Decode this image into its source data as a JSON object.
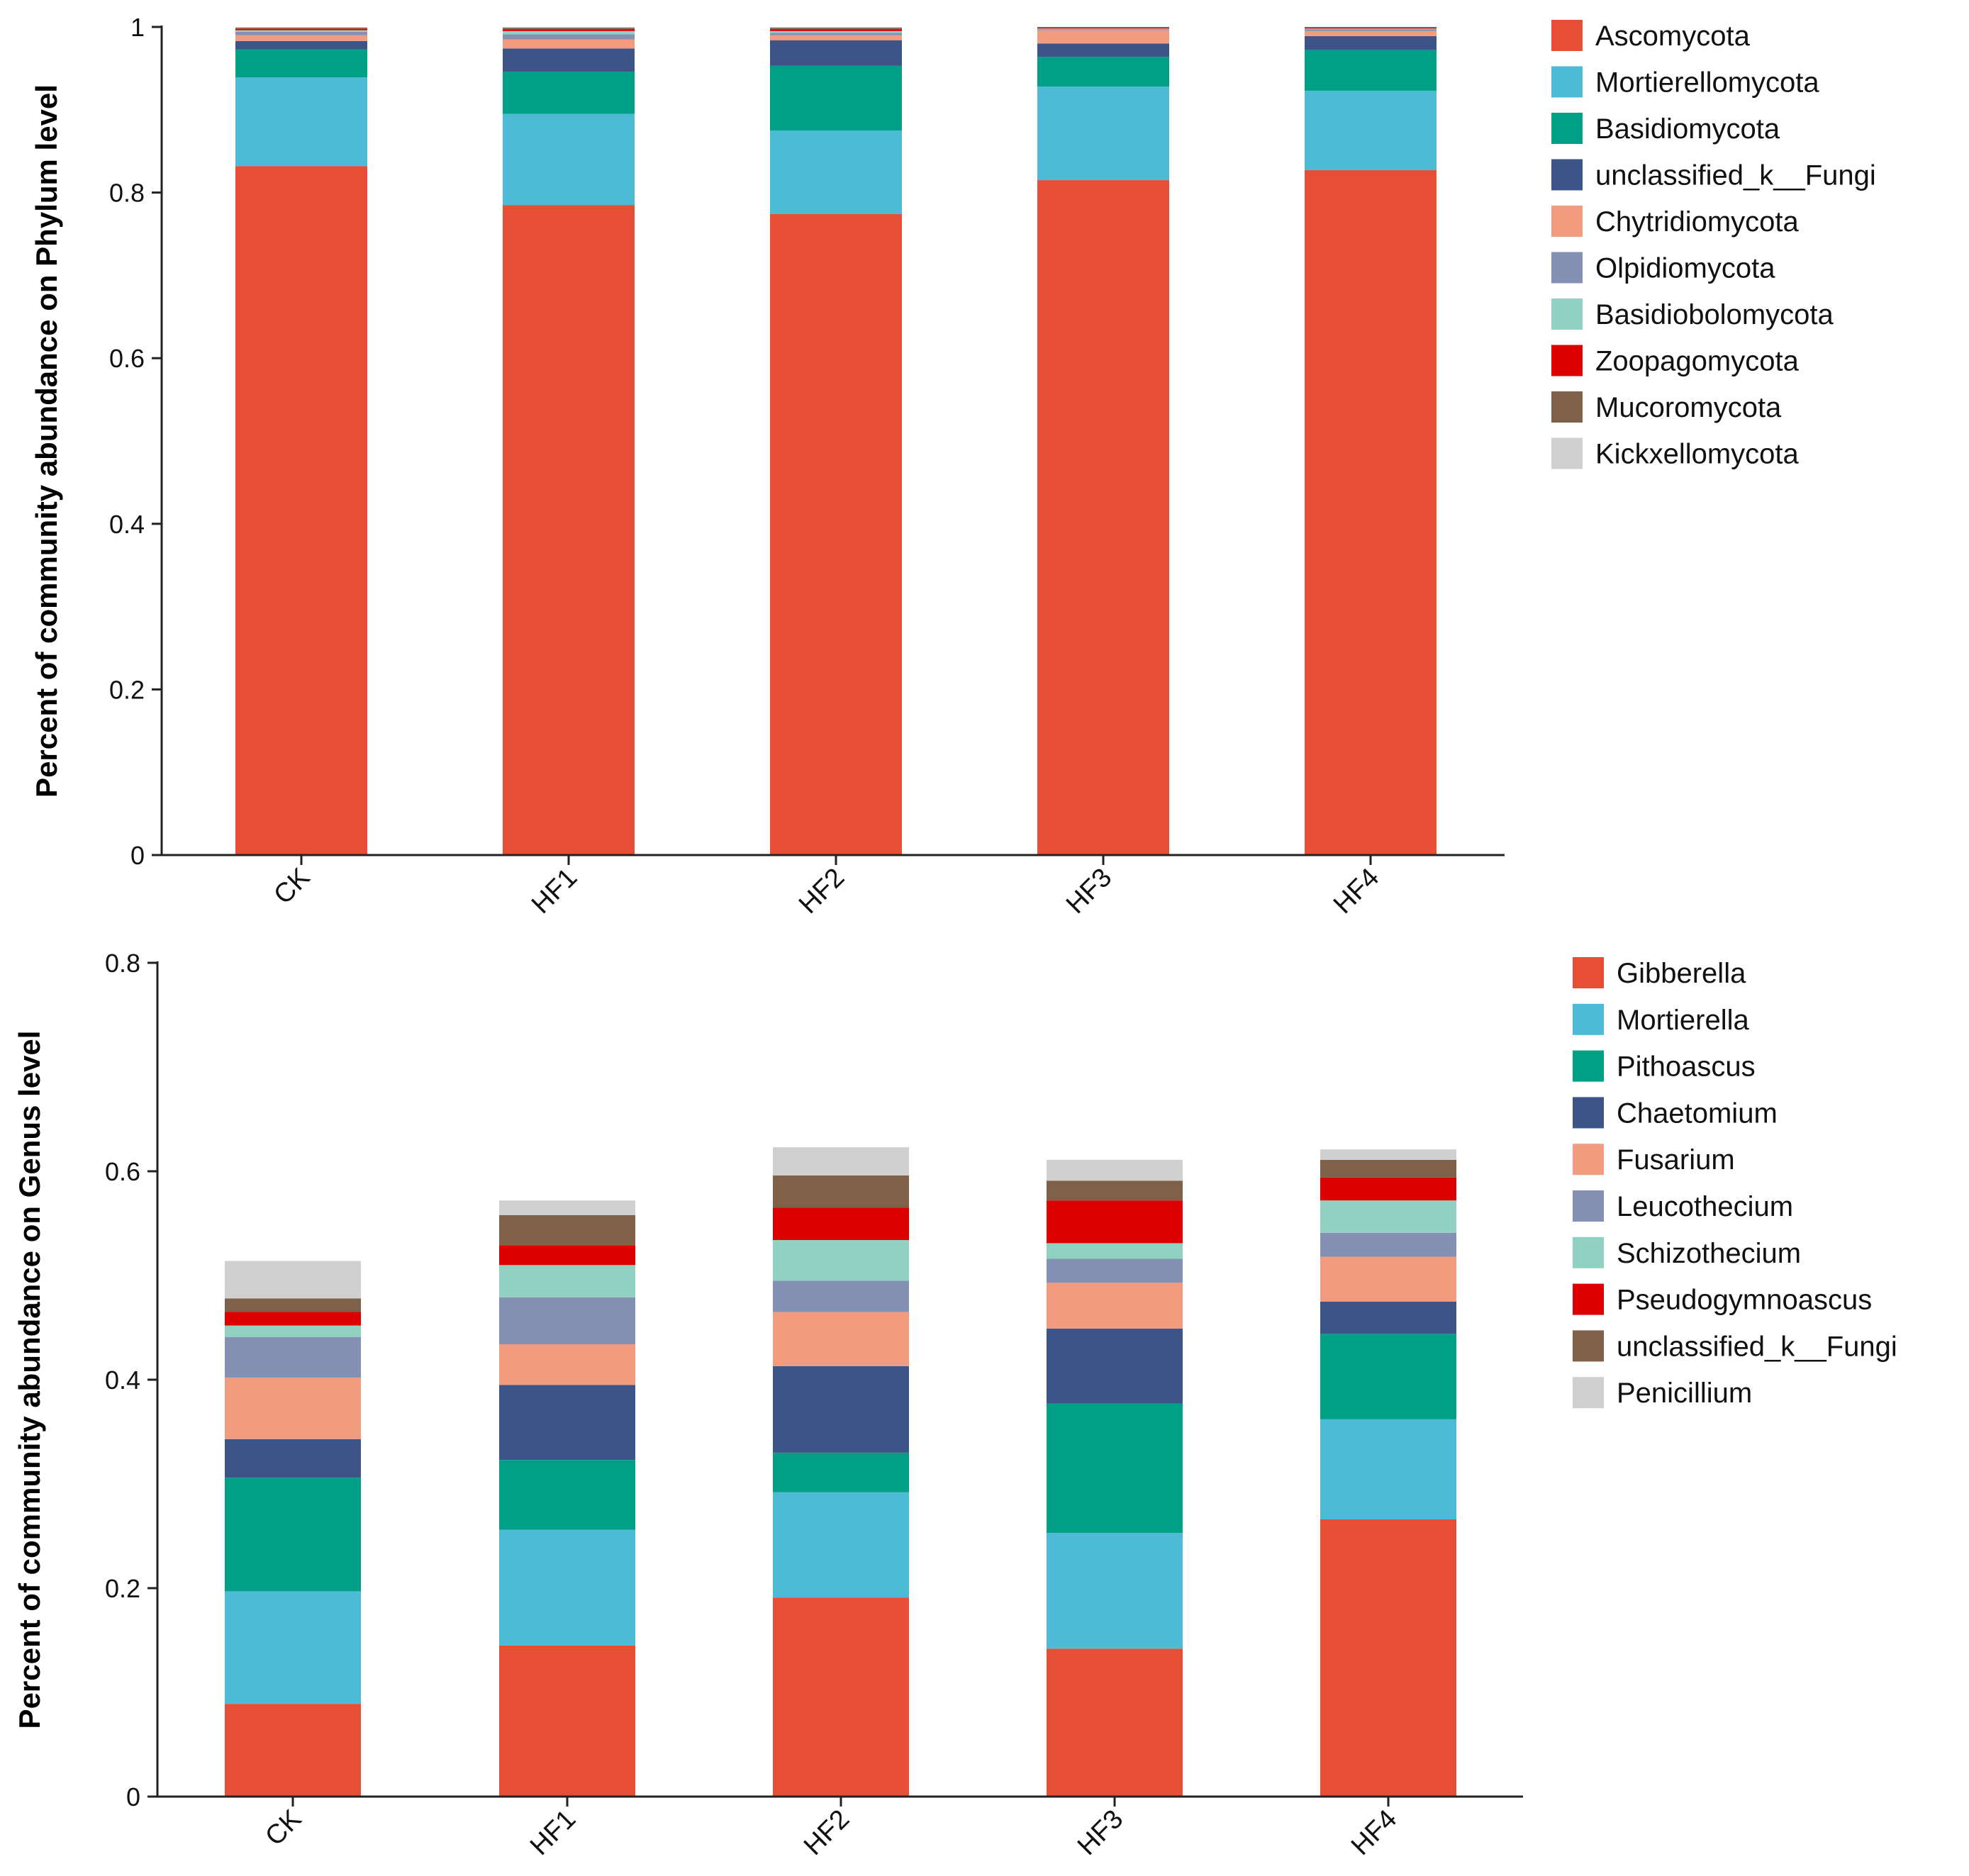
{
  "chart_data": [
    {
      "type": "bar",
      "stacked": true,
      "title": "",
      "xlabel": "",
      "ylabel": "Percent of community abundance on Phylum level",
      "ylim": [
        0,
        1
      ],
      "yticks": [
        0,
        0.2,
        0.4,
        0.6,
        0.8,
        1
      ],
      "ytick_labels": [
        "0",
        "0.2",
        "0.4",
        "0.6",
        "0.8",
        "1"
      ],
      "legend_position": "right",
      "categories": [
        "CK",
        "HF1",
        "HF2",
        "HF3",
        "HF4"
      ],
      "series": [
        {
          "name": "Ascomycota",
          "color": "#E64E35",
          "values": [
            0.832,
            0.785,
            0.774,
            0.815,
            0.827
          ]
        },
        {
          "name": "Mortierellomycota",
          "color": "#4DBBD5",
          "values": [
            0.107,
            0.11,
            0.101,
            0.113,
            0.096
          ]
        },
        {
          "name": "Basidiomycota",
          "color": "#00A087",
          "values": [
            0.034,
            0.051,
            0.078,
            0.036,
            0.049
          ]
        },
        {
          "name": "unclassified_k__Fungi",
          "color": "#3C5488",
          "values": [
            0.01,
            0.028,
            0.031,
            0.016,
            0.017
          ]
        },
        {
          "name": "Chytridiomycota",
          "color": "#F39B7F",
          "values": [
            0.007,
            0.011,
            0.006,
            0.016,
            0.006
          ]
        },
        {
          "name": "Olpidiomycota",
          "color": "#8491B4",
          "values": [
            0.004,
            0.006,
            0.003,
            0.001,
            0.002
          ]
        },
        {
          "name": "Basidiobolomycota",
          "color": "#91D1C2",
          "values": [
            0.002,
            0.004,
            0.002,
            0.001,
            0.001
          ]
        },
        {
          "name": "Zoopagomycota",
          "color": "#DC0000",
          "values": [
            0.002,
            0.002,
            0.002,
            0.001,
            0.001
          ]
        },
        {
          "name": "Mucoromycota",
          "color": "#7E6148",
          "values": [
            0.001,
            0.002,
            0.002,
            0.001,
            0.001
          ]
        },
        {
          "name": "Kickxellomycota",
          "color": "#D0D0D0",
          "values": [
            0.001,
            0.001,
            0.001,
            0.0,
            0.0
          ]
        }
      ]
    },
    {
      "type": "bar",
      "stacked": true,
      "title": "",
      "xlabel": "",
      "ylabel": "Percent of community abundance on Genus level",
      "ylim": [
        0,
        0.8
      ],
      "yticks": [
        0,
        0.2,
        0.4,
        0.6,
        0.8
      ],
      "ytick_labels": [
        "0",
        "0.2",
        "0.4",
        "0.6",
        "0.8"
      ],
      "legend_position": "right",
      "categories": [
        "CK",
        "HF1",
        "HF2",
        "HF3",
        "HF4"
      ],
      "series": [
        {
          "name": "Gibberella",
          "color": "#E64E35",
          "values": [
            0.089,
            0.145,
            0.191,
            0.142,
            0.266
          ]
        },
        {
          "name": "Mortierella",
          "color": "#4DBBD5",
          "values": [
            0.108,
            0.111,
            0.101,
            0.111,
            0.096
          ]
        },
        {
          "name": "Pithoascus",
          "color": "#00A087",
          "values": [
            0.109,
            0.067,
            0.038,
            0.124,
            0.082
          ]
        },
        {
          "name": "Chaetomium",
          "color": "#3C5488",
          "values": [
            0.037,
            0.072,
            0.083,
            0.072,
            0.031
          ]
        },
        {
          "name": "Fusarium",
          "color": "#F39B7F",
          "values": [
            0.059,
            0.039,
            0.052,
            0.044,
            0.043
          ]
        },
        {
          "name": "Leucothecium",
          "color": "#8491B4",
          "values": [
            0.039,
            0.045,
            0.03,
            0.023,
            0.023
          ]
        },
        {
          "name": "Schizothecium",
          "color": "#91D1C2",
          "values": [
            0.011,
            0.031,
            0.039,
            0.015,
            0.031
          ]
        },
        {
          "name": "Pseudogymnoascus",
          "color": "#DC0000",
          "values": [
            0.013,
            0.019,
            0.031,
            0.041,
            0.022
          ]
        },
        {
          "name": "unclassified_k__Fungi",
          "color": "#7E6148",
          "values": [
            0.013,
            0.029,
            0.031,
            0.019,
            0.017
          ]
        },
        {
          "name": "Penicillium",
          "color": "#D0D0D0",
          "values": [
            0.036,
            0.014,
            0.027,
            0.02,
            0.01
          ]
        }
      ]
    }
  ]
}
